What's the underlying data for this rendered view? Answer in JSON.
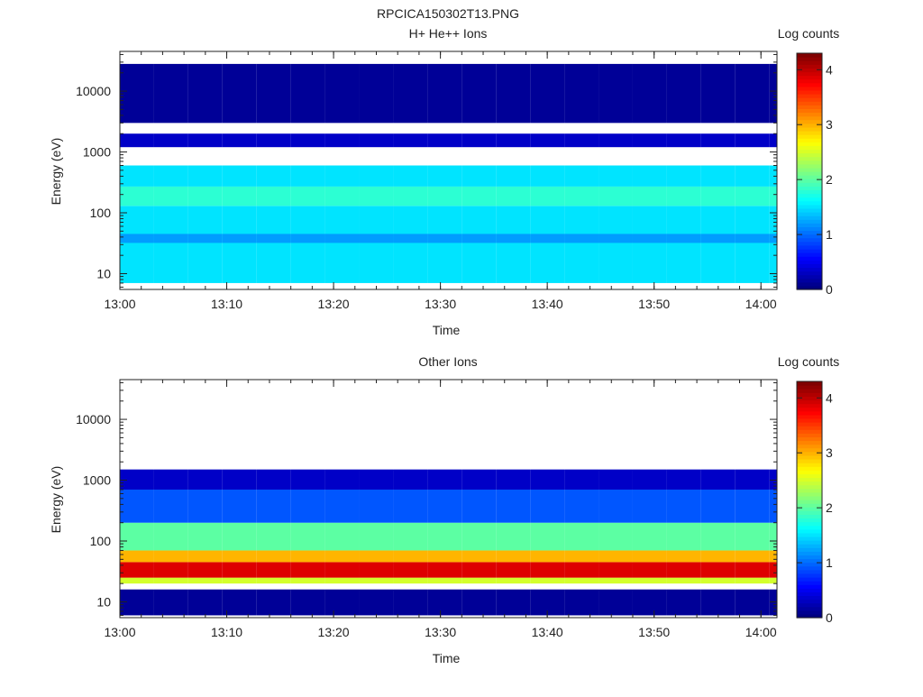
{
  "figure": {
    "title": "RPCICA150302T13.PNG"
  },
  "colors": {
    "background": "#ffffff",
    "axis": "#222222",
    "colormap": [
      "#00007f",
      "#0000ff",
      "#007fff",
      "#00ffff",
      "#7fff7f",
      "#ffff00",
      "#ff7f00",
      "#ff0000",
      "#7f0000"
    ]
  },
  "chart_data": [
    {
      "type": "heatmap",
      "title": "H+ He++ Ions",
      "xlabel": "Time",
      "ylabel": "Energy (eV)",
      "x_tick_labels": [
        "13:00",
        "13:10",
        "13:20",
        "13:30",
        "13:40",
        "13:50",
        "14:00"
      ],
      "x_tick_minutes": [
        0,
        10,
        20,
        30,
        40,
        50,
        60
      ],
      "xlim_minutes": [
        0,
        61.5
      ],
      "y_scale": "log",
      "ylim": [
        5.5,
        45000
      ],
      "y_tick_labels": [
        "10",
        "100",
        "1000",
        "10000"
      ],
      "y_tick_values": [
        10,
        100,
        1000,
        10000
      ],
      "colorbar": {
        "label": "Log counts",
        "range": [
          0,
          4.3
        ],
        "tick_labels": [
          "0",
          "1",
          "2",
          "3",
          "4"
        ],
        "tick_values": [
          0,
          1,
          2,
          3,
          4
        ]
      },
      "time_bins_minutes": [
        0,
        3.2,
        6.4,
        9.6,
        12.8,
        16.0,
        19.2,
        22.4,
        25.6,
        28.8,
        32.0,
        35.2,
        38.4,
        41.6,
        44.8,
        48.0,
        51.2,
        54.4,
        57.6,
        60.8
      ],
      "cells": [
        {
          "band": [
            7,
            130
          ],
          "lc": 1.5
        },
        {
          "band": [
            130,
            270
          ],
          "lc": 1.8
        },
        {
          "band": [
            270,
            600
          ],
          "lc": 1.5
        },
        {
          "band": [
            32,
            45
          ],
          "lc": 1.2
        },
        {
          "band": [
            1200,
            2000
          ],
          "lc": 0.3
        },
        {
          "band": [
            3000,
            28000
          ],
          "lc": 0.1
        }
      ]
    },
    {
      "type": "heatmap",
      "title": "Other Ions",
      "xlabel": "Time",
      "ylabel": "Energy (eV)",
      "x_tick_labels": [
        "13:00",
        "13:10",
        "13:20",
        "13:30",
        "13:40",
        "13:50",
        "14:00"
      ],
      "x_tick_minutes": [
        0,
        10,
        20,
        30,
        40,
        50,
        60
      ],
      "xlim_minutes": [
        0,
        61.5
      ],
      "y_scale": "log",
      "ylim": [
        5.5,
        45000
      ],
      "y_tick_labels": [
        "10",
        "100",
        "1000",
        "10000"
      ],
      "y_tick_values": [
        10,
        100,
        1000,
        10000
      ],
      "colorbar": {
        "label": "Log counts",
        "range": [
          0,
          4.3
        ],
        "tick_labels": [
          "0",
          "1",
          "2",
          "3",
          "4"
        ],
        "tick_values": [
          0,
          1,
          2,
          3,
          4
        ]
      },
      "time_bins_minutes": [
        0,
        3.2,
        6.4,
        9.6,
        12.8,
        16.0,
        19.2,
        22.4,
        25.6,
        28.8,
        32.0,
        35.2,
        38.4,
        41.6,
        44.8,
        48.0,
        51.2,
        54.4,
        57.6,
        60.8
      ],
      "cells": [
        {
          "band": [
            20,
            25
          ],
          "lc": 2.5
        },
        {
          "band": [
            25,
            45
          ],
          "lc": 3.9
        },
        {
          "band": [
            45,
            70
          ],
          "lc": 3.0
        },
        {
          "band": [
            70,
            200
          ],
          "lc": 2.0
        },
        {
          "band": [
            200,
            700
          ],
          "lc": 0.9
        },
        {
          "band": [
            700,
            1500
          ],
          "lc": 0.3
        },
        {
          "band": [
            6,
            16
          ],
          "lc": 0.1
        }
      ]
    }
  ]
}
